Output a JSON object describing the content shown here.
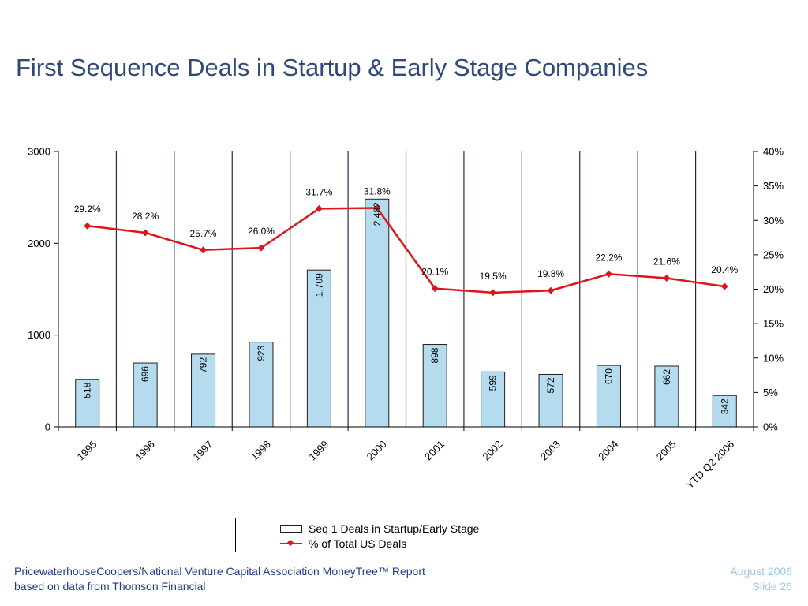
{
  "slide": {
    "title": "First Sequence Deals in Startup & Early Stage Companies"
  },
  "footer": {
    "source_line1": "PricewaterhouseCoopers/National Venture Capital Association MoneyTree™ Report",
    "source_line2": "based on data from Thomson Financial",
    "date": "August 2006",
    "slide_number": "Slide 26"
  },
  "colors": {
    "title": "#2f4a7a",
    "bar_fill": "#b4dcee",
    "bar_stroke": "#1f1f1f",
    "line": "#e0141b",
    "grid_vertical": "#1f2f4f",
    "footer_left": "#1f3d8a",
    "footer_right": "#9cc7e6"
  },
  "chart_data": {
    "type": "bar",
    "title": "",
    "xlabel": "",
    "ylabel": "",
    "categories": [
      "1995",
      "1996",
      "1997",
      "1998",
      "1999",
      "2000",
      "2001",
      "2002",
      "2003",
      "2004",
      "2005",
      "YTD Q2 2006"
    ],
    "series": [
      {
        "name": "Seq 1 Deals in Startup/Early Stage",
        "type": "bar",
        "axis": "left",
        "values": [
          518,
          696,
          792,
          923,
          1709,
          2482,
          898,
          599,
          572,
          670,
          662,
          342
        ],
        "labels": [
          "518",
          "696",
          "792",
          "923",
          "1,709",
          "2,482",
          "898",
          "599",
          "572",
          "670",
          "662",
          "342"
        ]
      },
      {
        "name": "% of Total US Deals",
        "type": "line",
        "axis": "right",
        "values": [
          29.2,
          28.2,
          25.7,
          26.0,
          31.7,
          31.8,
          20.1,
          19.5,
          19.8,
          22.2,
          21.6,
          20.4
        ],
        "labels": [
          "29.2%",
          "28.2%",
          "25.7%",
          "26.0%",
          "31.7%",
          "31.8%",
          "20.1%",
          "19.5%",
          "19.8%",
          "22.2%",
          "21.6%",
          "20.4%"
        ]
      }
    ],
    "y_left": {
      "range": [
        0,
        3000
      ],
      "ticks": [
        0,
        1000,
        2000,
        3000
      ],
      "tick_labels": [
        "0",
        "1000",
        "2000",
        "3000"
      ]
    },
    "y_right": {
      "range": [
        0,
        40
      ],
      "ticks": [
        0,
        5,
        10,
        15,
        20,
        25,
        30,
        35,
        40
      ],
      "tick_labels": [
        "0%",
        "5%",
        "10%",
        "15%",
        "20%",
        "25%",
        "30%",
        "35%",
        "40%"
      ]
    },
    "grid": {
      "vertical_category_lines": true,
      "horizontal": false
    },
    "legend": {
      "placement": "bottom-center"
    }
  }
}
